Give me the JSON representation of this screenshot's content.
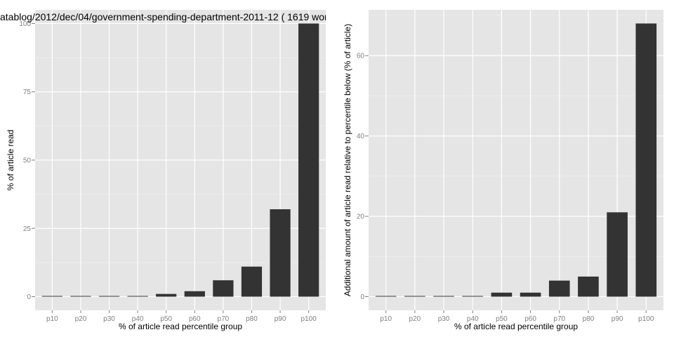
{
  "colors": {
    "panel_background": "#e5e5e5",
    "grid_major": "#ffffff",
    "grid_minor": "#f2f2f2",
    "bar_fill": "#333333",
    "tick_label": "#7f7f7f",
    "text": "#000000"
  },
  "chart_data": [
    {
      "type": "bar",
      "title": "atablog/2012/dec/04/government-spending-department-2011-12 ( 1619 wor",
      "xlabel": "% of article read percentile group",
      "ylabel": "% of article read",
      "categories": [
        "p10",
        "p20",
        "p30",
        "p40",
        "p50",
        "p60",
        "p70",
        "p80",
        "p90",
        "p100"
      ],
      "values": [
        0,
        0,
        0,
        0,
        1,
        2,
        6,
        11,
        32,
        100
      ],
      "ylim": [
        -5,
        105
      ],
      "yticks": [
        0,
        25,
        50,
        75,
        100
      ],
      "ytick_labels": [
        "0",
        "25",
        "50",
        "75",
        "100"
      ],
      "grid": true
    },
    {
      "type": "bar",
      "title": "",
      "xlabel": "% of article read percentile group",
      "ylabel": "Additional amount of article read relative to percentile below (% of article)",
      "categories": [
        "p10",
        "p20",
        "p30",
        "p40",
        "p50",
        "p60",
        "p70",
        "p80",
        "p90",
        "p100"
      ],
      "values": [
        0,
        0,
        0,
        0,
        1,
        1,
        4,
        5,
        21,
        68
      ],
      "ylim": [
        -3.4,
        71.4
      ],
      "yticks": [
        0,
        20,
        40,
        60
      ],
      "ytick_labels": [
        "0",
        "20",
        "40",
        "60"
      ],
      "grid": true
    }
  ]
}
